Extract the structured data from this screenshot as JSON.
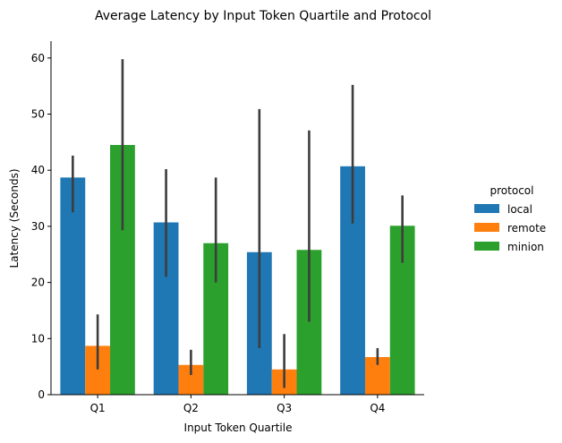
{
  "chart_data": {
    "type": "bar",
    "title": "Average Latency by Input Token Quartile and Protocol",
    "xlabel": "Input Token Quartile",
    "ylabel": "Latency (Seconds)",
    "categories": [
      "Q1",
      "Q2",
      "Q3",
      "Q4"
    ],
    "ylim": [
      0,
      63
    ],
    "yticks": [
      0,
      10,
      20,
      30,
      40,
      50,
      60
    ],
    "grid": false,
    "legend": {
      "title": "protocol",
      "placement": "right"
    },
    "series": [
      {
        "name": "local",
        "color": "#1f77b4",
        "values": [
          38.7,
          30.7,
          25.4,
          40.7
        ],
        "ci_low": [
          32.5,
          21.0,
          8.3,
          30.5
        ],
        "ci_high": [
          42.6,
          40.2,
          50.9,
          55.2
        ]
      },
      {
        "name": "remote",
        "color": "#ff7f0e",
        "values": [
          8.7,
          5.3,
          4.5,
          6.7
        ],
        "ci_low": [
          4.5,
          3.5,
          1.2,
          5.3
        ],
        "ci_high": [
          14.3,
          8.0,
          10.8,
          8.3
        ]
      },
      {
        "name": "minion",
        "color": "#2ca02c",
        "values": [
          44.5,
          27.0,
          25.8,
          30.1
        ],
        "ci_low": [
          29.3,
          20.0,
          13.0,
          23.5
        ],
        "ci_high": [
          59.8,
          38.7,
          47.1,
          35.5
        ]
      }
    ]
  }
}
